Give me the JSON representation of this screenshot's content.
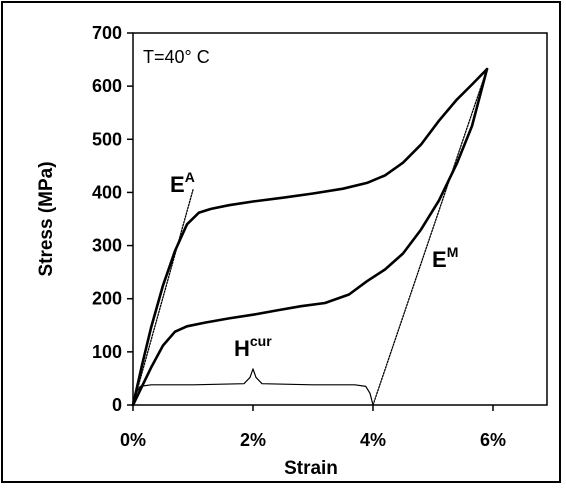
{
  "chart_data": {
    "type": "line",
    "title": "",
    "xlabel": "Strain",
    "ylabel": "Stress (MPa)",
    "xlim": [
      0,
      6.9
    ],
    "ylim": [
      0,
      700
    ],
    "x_ticks": [
      "0%",
      "2%",
      "4%",
      "6%"
    ],
    "x_tick_values": [
      0,
      2,
      4,
      6
    ],
    "y_ticks": [
      "0",
      "100",
      "200",
      "300",
      "400",
      "500",
      "600",
      "700"
    ],
    "y_tick_values": [
      0,
      100,
      200,
      300,
      400,
      500,
      600,
      700
    ],
    "grid": false,
    "legend": "none",
    "condition_label": "T=40° C",
    "annotations": [
      {
        "id": "EA",
        "base": "E",
        "sup": "A"
      },
      {
        "id": "EM",
        "base": "E",
        "sup": "M"
      },
      {
        "id": "Hcur",
        "base": "H",
        "sup": "cur"
      }
    ],
    "series": [
      {
        "role": "loading",
        "style": "solid",
        "x": [
          0,
          0.15,
          0.3,
          0.5,
          0.7,
          0.9,
          1.1,
          1.3,
          1.6,
          2.0,
          2.5,
          3.0,
          3.5,
          3.9,
          4.2,
          4.5,
          4.8,
          5.1,
          5.4,
          5.65,
          5.9
        ],
        "y": [
          0,
          75,
          145,
          225,
          290,
          340,
          362,
          369,
          376,
          383,
          390,
          398,
          407,
          418,
          432,
          456,
          490,
          535,
          575,
          603,
          632
        ]
      },
      {
        "role": "unloading",
        "style": "solid",
        "x": [
          5.9,
          5.65,
          5.4,
          5.1,
          4.8,
          4.5,
          4.2,
          3.9,
          3.6,
          3.2,
          2.8,
          2.4,
          2.0,
          1.6,
          1.2,
          0.9,
          0.7,
          0.5,
          0.3,
          0.15,
          0
        ],
        "y": [
          632,
          525,
          455,
          385,
          330,
          285,
          255,
          233,
          208,
          192,
          186,
          178,
          170,
          163,
          155,
          148,
          138,
          112,
          70,
          35,
          0
        ]
      },
      {
        "role": "E^A tangent",
        "style": "dotted",
        "x": [
          0,
          1.0
        ],
        "y": [
          0,
          405
        ]
      },
      {
        "role": "E^M tangent",
        "style": "dotted",
        "x": [
          4.0,
          5.9
        ],
        "y": [
          0,
          632
        ]
      },
      {
        "role": "H^cur brace",
        "style": "solid-thin",
        "x": [
          0,
          0.05,
          0.12,
          0.3,
          1.0,
          1.85,
          1.95,
          2.0,
          2.05,
          2.15,
          3.0,
          3.7,
          3.88,
          3.95,
          4.0
        ],
        "y": [
          0,
          22,
          35,
          38,
          38,
          40,
          52,
          68,
          52,
          40,
          38,
          38,
          35,
          22,
          0
        ]
      }
    ]
  }
}
